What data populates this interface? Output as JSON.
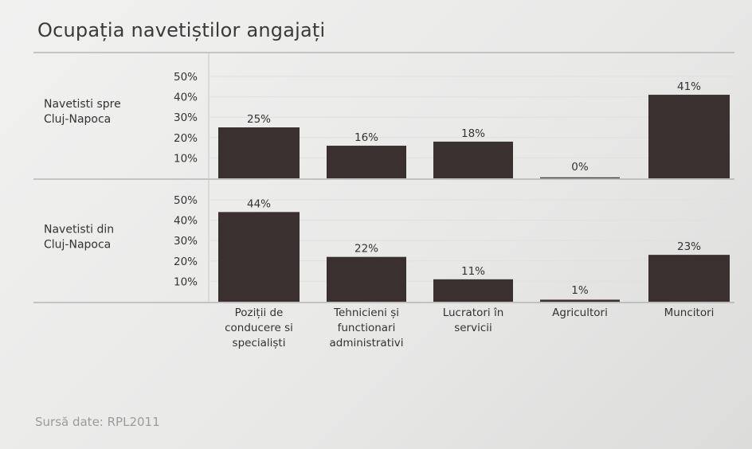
{
  "chart_data": {
    "type": "bar",
    "title": "Ocupația navetiștilor angajați",
    "source": "Sursă date: RPL2011",
    "categories": [
      [
        "Poziții de",
        "conducere si",
        "specialiști"
      ],
      [
        "Tehnicieni și",
        "functionari",
        "administrativi"
      ],
      [
        "Lucratori în",
        "servicii"
      ],
      [
        "Agricultori"
      ],
      [
        "Muncitori"
      ]
    ],
    "yticks": [
      "50%",
      "40%",
      "30%",
      "20%",
      "10%"
    ],
    "ylim": [
      0,
      50
    ],
    "series": [
      {
        "name_lines": [
          "Navetisti spre",
          "Cluj-Napoca"
        ],
        "values": [
          25,
          16,
          18,
          0,
          41
        ],
        "labels": [
          "25%",
          "16%",
          "18%",
          "0%",
          "41%"
        ]
      },
      {
        "name_lines": [
          "Navetisti din",
          "Cluj-Napoca"
        ],
        "values": [
          44,
          22,
          11,
          1,
          23
        ],
        "labels": [
          "44%",
          "22%",
          "11%",
          "1%",
          "23%"
        ]
      }
    ],
    "bar_color": "#3a3030",
    "grid": true,
    "legend": "row labels on left"
  }
}
